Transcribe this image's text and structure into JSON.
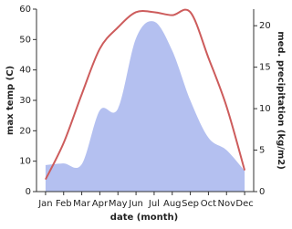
{
  "chart_data": {
    "type": "line-area",
    "x_label": "date (month)",
    "y_label": "max temp (C)",
    "y2_label": "med. precipitation (kg/m2)",
    "categories": [
      "Jan",
      "Feb",
      "Mar",
      "Apr",
      "May",
      "Jun",
      "Jul",
      "Aug",
      "Sep",
      "Oct",
      "Nov",
      "Dec"
    ],
    "series": [
      {
        "name": "max temp",
        "kind": "line",
        "color": "#cd5c5c",
        "values": [
          4,
          16,
          32,
          47,
          54,
          59,
          59,
          58,
          59,
          44,
          28,
          7
        ]
      },
      {
        "name": "med. precipitation",
        "kind": "area",
        "axis": "y2",
        "color": "#b4c0f0",
        "values": [
          3.2,
          3.4,
          3.3,
          9.8,
          10,
          18.5,
          20.5,
          17,
          11,
          6.5,
          5,
          2.5
        ]
      }
    ],
    "ylim": [
      0,
      60
    ],
    "yticks": [
      0,
      10,
      20,
      30,
      40,
      50,
      60
    ],
    "y2lim": [
      0,
      22
    ],
    "y2ticks": [
      0,
      5,
      10,
      15,
      20
    ]
  }
}
